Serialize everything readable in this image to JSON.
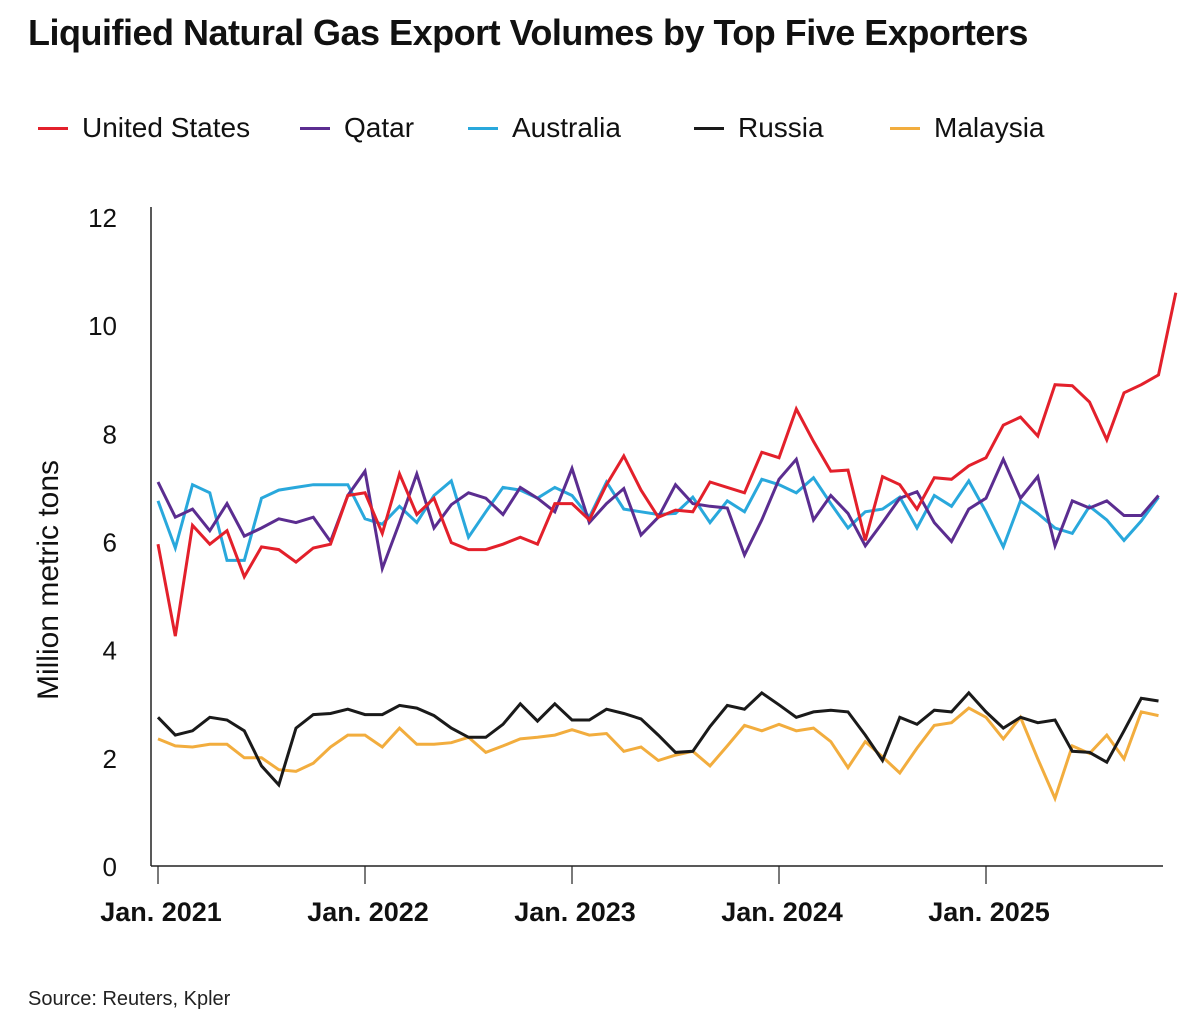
{
  "title": "Liquified Natural Gas Export Volumes by Top Five Exporters",
  "source": "Source: Reuters, Kpler",
  "chart_data": {
    "type": "line",
    "title": "Liquified Natural Gas Export Volumes by Top Five Exporters",
    "xlabel": "",
    "ylabel": "Million metric tons",
    "ylim": [
      0,
      12
    ],
    "yticks": [
      0,
      2,
      4,
      6,
      8,
      10,
      12
    ],
    "x_start": "2021-01",
    "x_frequency": "monthly",
    "xtick_labels": [
      "Jan. 2021",
      "Jan. 2022",
      "Jan. 2023",
      "Jan. 2024",
      "Jan. 2025"
    ],
    "xtick_indices": [
      0,
      12,
      24,
      36,
      48
    ],
    "legend_position": "top",
    "grid": false,
    "series": [
      {
        "name": "United States",
        "color": "#e3202b",
        "values": [
          5.95,
          4.25,
          6.3,
          5.95,
          6.2,
          5.35,
          5.9,
          5.85,
          5.62,
          5.88,
          5.95,
          6.85,
          6.9,
          6.15,
          7.25,
          6.5,
          6.8,
          5.98,
          5.85,
          5.85,
          5.95,
          6.08,
          5.95,
          6.7,
          6.7,
          6.4,
          7.05,
          7.58,
          6.95,
          6.45,
          6.58,
          6.55,
          7.1,
          7.0,
          6.9,
          7.65,
          7.55,
          8.45,
          7.85,
          7.3,
          7.32,
          6.02,
          7.2,
          7.05,
          6.6,
          7.18,
          7.15,
          7.4,
          7.55,
          8.15,
          8.3,
          7.95,
          8.9,
          8.88,
          8.58,
          7.88,
          8.75,
          8.9,
          9.08,
          10.6
        ]
      },
      {
        "name": "Qatar",
        "color": "#5b2d90",
        "values": [
          7.1,
          6.45,
          6.6,
          6.2,
          6.7,
          6.1,
          6.25,
          6.42,
          6.35,
          6.45,
          6.0,
          6.85,
          7.3,
          5.5,
          6.35,
          7.25,
          6.25,
          6.68,
          6.9,
          6.8,
          6.5,
          7.0,
          6.8,
          6.55,
          7.35,
          6.35,
          6.7,
          6.98,
          6.12,
          6.45,
          7.05,
          6.7,
          6.65,
          6.62,
          5.75,
          6.4,
          7.15,
          7.52,
          6.4,
          6.85,
          6.52,
          5.92,
          6.35,
          6.8,
          6.92,
          6.35,
          6.0,
          6.6,
          6.8,
          7.52,
          6.8,
          7.2,
          5.92,
          6.75,
          6.62,
          6.75,
          6.48,
          6.48,
          6.85
        ]
      },
      {
        "name": "Australia",
        "color": "#29a8dc",
        "values": [
          6.75,
          5.88,
          7.05,
          6.9,
          5.65,
          5.65,
          6.8,
          6.95,
          7.0,
          7.05,
          7.05,
          7.05,
          6.42,
          6.32,
          6.65,
          6.35,
          6.85,
          7.12,
          6.08,
          6.55,
          7.0,
          6.95,
          6.8,
          7.0,
          6.85,
          6.45,
          7.1,
          6.6,
          6.55,
          6.5,
          6.52,
          6.82,
          6.35,
          6.75,
          6.55,
          7.15,
          7.05,
          6.9,
          7.18,
          6.7,
          6.25,
          6.55,
          6.6,
          6.82,
          6.25,
          6.85,
          6.65,
          7.12,
          6.55,
          5.9,
          6.75,
          6.52,
          6.25,
          6.15,
          6.65,
          6.4,
          6.02,
          6.38,
          6.82
        ]
      },
      {
        "name": "Russia",
        "color": "#1a1a1a",
        "values": [
          2.75,
          2.42,
          2.5,
          2.75,
          2.7,
          2.5,
          1.85,
          1.5,
          2.55,
          2.8,
          2.82,
          2.9,
          2.8,
          2.8,
          2.97,
          2.92,
          2.78,
          2.55,
          2.38,
          2.38,
          2.62,
          3.0,
          2.68,
          3.0,
          2.7,
          2.7,
          2.9,
          2.82,
          2.72,
          2.42,
          2.1,
          2.12,
          2.58,
          2.97,
          2.9,
          3.2,
          2.98,
          2.75,
          2.85,
          2.88,
          2.85,
          2.42,
          1.95,
          2.75,
          2.62,
          2.88,
          2.85,
          3.2,
          2.85,
          2.55,
          2.75,
          2.65,
          2.7,
          2.12,
          2.1,
          1.92,
          2.5,
          3.1,
          3.05
        ]
      },
      {
        "name": "Malaysia",
        "color": "#f2ad3e",
        "values": [
          2.35,
          2.22,
          2.2,
          2.25,
          2.25,
          2.0,
          2.0,
          1.78,
          1.75,
          1.9,
          2.2,
          2.42,
          2.42,
          2.2,
          2.55,
          2.25,
          2.25,
          2.28,
          2.38,
          2.1,
          2.22,
          2.35,
          2.38,
          2.42,
          2.52,
          2.42,
          2.45,
          2.12,
          2.2,
          1.95,
          2.05,
          2.12,
          1.85,
          2.22,
          2.6,
          2.5,
          2.62,
          2.5,
          2.55,
          2.3,
          1.82,
          2.3,
          2.02,
          1.72,
          2.18,
          2.6,
          2.65,
          2.92,
          2.75,
          2.35,
          2.75,
          1.98,
          1.25,
          2.22,
          2.08,
          2.42,
          1.98,
          2.85,
          2.78
        ]
      }
    ]
  }
}
